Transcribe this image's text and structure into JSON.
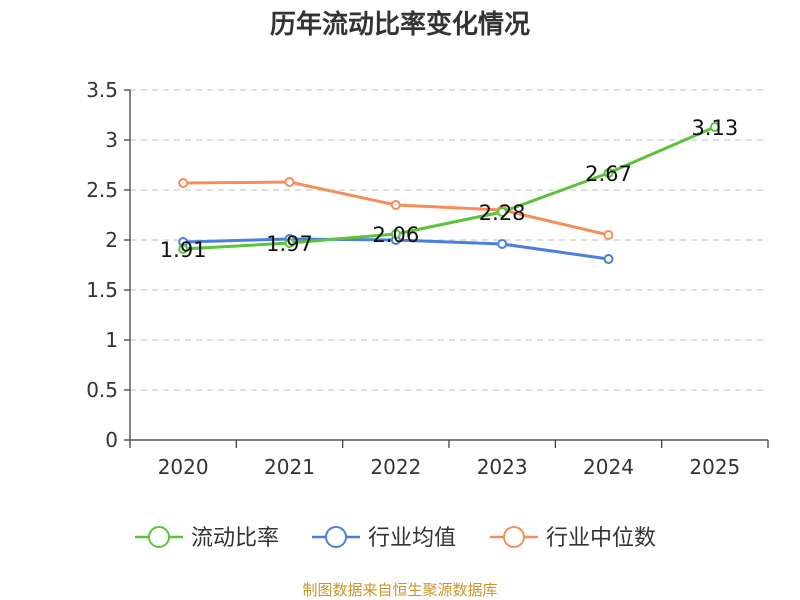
{
  "chart_data": {
    "type": "line",
    "title": "历年流动比率变化情况",
    "categories": [
      "2020",
      "2021",
      "2022",
      "2023",
      "2024",
      "2025"
    ],
    "ylim": [
      0,
      3.5
    ],
    "yticks": [
      "0",
      "0.5",
      "1",
      "1.5",
      "2",
      "2.5",
      "3",
      "3.5"
    ],
    "grid": true,
    "legend_position": "bottom",
    "series": [
      {
        "name": "流动比率",
        "color": "#5cc23c",
        "values": [
          1.91,
          1.97,
          2.06,
          2.28,
          2.67,
          3.13
        ],
        "labels": [
          "1.91",
          "1.97",
          "2.06",
          "2.28",
          "2.67",
          "3.13"
        ]
      },
      {
        "name": "行业均值",
        "color": "#4a7fdc",
        "values": [
          1.98,
          2.01,
          2.0,
          1.96,
          1.81,
          null
        ]
      },
      {
        "name": "行业中位数",
        "color": "#f58e5a",
        "values": [
          2.57,
          2.58,
          2.35,
          2.3,
          2.05,
          null
        ]
      }
    ]
  },
  "source_text": "制图数据来自恒生聚源数据库"
}
